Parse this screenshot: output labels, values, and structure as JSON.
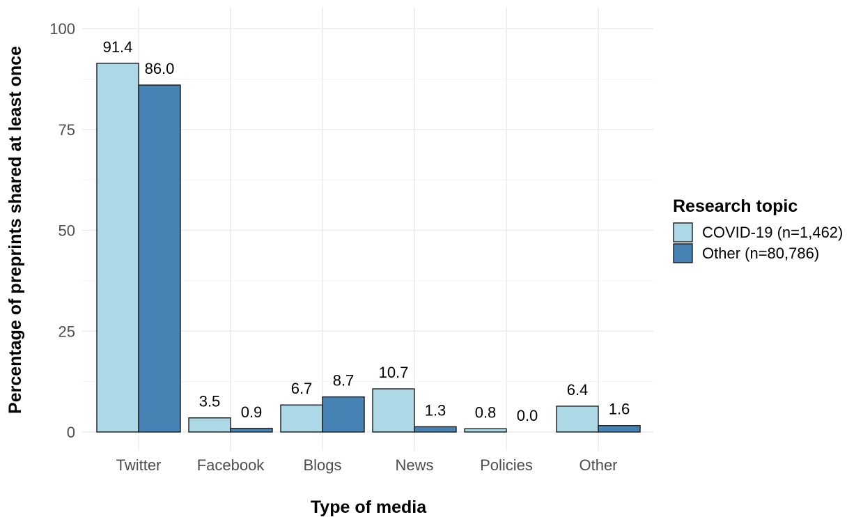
{
  "chart_data": {
    "type": "bar",
    "categories": [
      "Twitter",
      "Facebook",
      "Blogs",
      "News",
      "Policies",
      "Other"
    ],
    "series": [
      {
        "name": "COVID-19 (n=1,462)",
        "values": [
          91.4,
          3.5,
          6.7,
          10.7,
          0.8,
          6.4
        ],
        "labels": [
          "91.4",
          "3.5",
          "6.7",
          "10.7",
          "0.8",
          "6.4"
        ],
        "color": "#add8e6"
      },
      {
        "name": "Other (n=80,786)",
        "values": [
          86.0,
          0.9,
          8.7,
          1.3,
          0.0,
          1.6
        ],
        "labels": [
          "86.0",
          "0.9",
          "8.7",
          "1.3",
          "0.0",
          "1.6"
        ],
        "color": "#4682b4"
      }
    ],
    "xlabel": "Type of media",
    "ylabel": "Percentage of preprints shared at least once",
    "ylim": [
      0,
      100
    ],
    "yticks": [
      0,
      25,
      50,
      75,
      100
    ],
    "grid": true,
    "legend": {
      "title": "Research topic",
      "position": "right"
    }
  }
}
